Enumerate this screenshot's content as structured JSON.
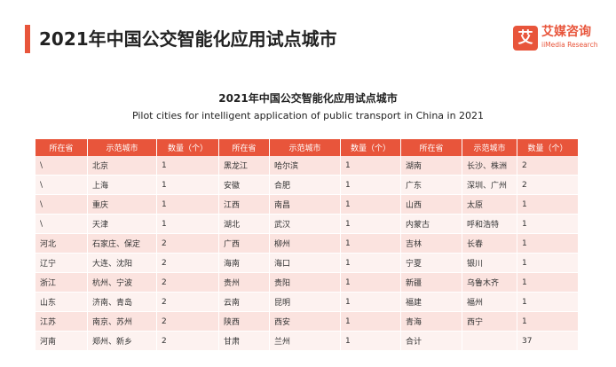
{
  "header": {
    "title": "2021年中国公交智能化应用试点城市",
    "accent_color": "#e8553b"
  },
  "brand": {
    "badge": "艾",
    "name": "艾媒咨询",
    "subtitle": "iiMedia Research"
  },
  "table": {
    "title_cn": "2021年中国公交智能化应用试点城市",
    "title_en": "Pilot cities for intelligent application of public transport in China in 2021",
    "headers": [
      "所在省",
      "示范城市",
      "数量（个）",
      "所在省",
      "示范城市",
      "数量（个）",
      "所在省",
      "示范城市",
      "数量（个）"
    ],
    "rows": [
      [
        "\\",
        "北京",
        "1",
        "黑龙江",
        "哈尔滨",
        "1",
        "湖南",
        "长沙、株洲",
        "2"
      ],
      [
        "\\",
        "上海",
        "1",
        "安徽",
        "合肥",
        "1",
        "广东",
        "深圳、广州",
        "2"
      ],
      [
        "\\",
        "重庆",
        "1",
        "江西",
        "南昌",
        "1",
        "山西",
        "太原",
        "1"
      ],
      [
        "\\",
        "天津",
        "1",
        "湖北",
        "武汉",
        "1",
        "内蒙古",
        "呼和浩特",
        "1"
      ],
      [
        "河北",
        "石家庄、保定",
        "2",
        "广西",
        "柳州",
        "1",
        "吉林",
        "长春",
        "1"
      ],
      [
        "辽宁",
        "大连、沈阳",
        "2",
        "海南",
        "海口",
        "1",
        "宁夏",
        "银川",
        "1"
      ],
      [
        "浙江",
        "杭州、宁波",
        "2",
        "贵州",
        "贵阳",
        "1",
        "新疆",
        "乌鲁木齐",
        "1"
      ],
      [
        "山东",
        "济南、青岛",
        "2",
        "云南",
        "昆明",
        "1",
        "福建",
        "福州",
        "1"
      ],
      [
        "江苏",
        "南京、苏州",
        "2",
        "陕西",
        "西安",
        "1",
        "青海",
        "西宁",
        "1"
      ],
      [
        "河南",
        "郑州、新乡",
        "2",
        "甘肃",
        "兰州",
        "1",
        "合计",
        "",
        "37"
      ]
    ]
  }
}
